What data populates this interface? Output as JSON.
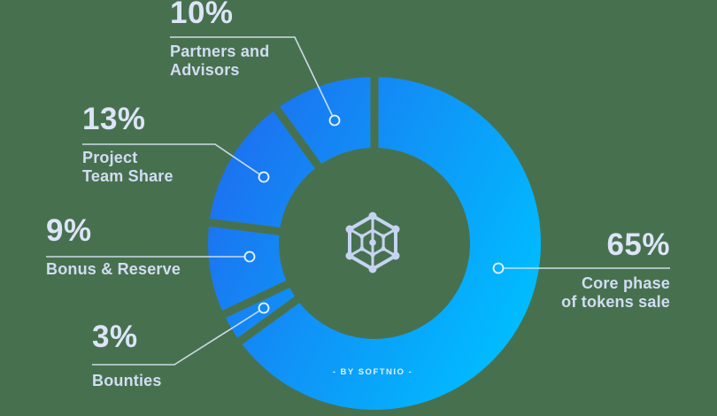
{
  "chart_data": {
    "type": "pie",
    "variant": "donut",
    "byline": "- BY SOFTNIO -",
    "unit": "%",
    "legend_position": "callout-labels",
    "slices": [
      {
        "name": "Core phase\nof tokens sale",
        "pct": "65%",
        "value": 65
      },
      {
        "name": "Bounties",
        "pct": "3%",
        "value": 3
      },
      {
        "name": "Bonus & Reserve",
        "pct": "9%",
        "value": 9
      },
      {
        "name": "Project\nTeam Share",
        "pct": "13%",
        "value": 13
      },
      {
        "name": "Partners and\nAdvisors",
        "pct": "10%",
        "value": 10
      }
    ],
    "colors": {
      "background": "#47714e",
      "ring_gradient_start": "#1e6cef",
      "ring_gradient_end": "#00bdff",
      "pct_text": "#dde4f8",
      "label_text": "#d2dcf4",
      "leader_line": "#d9e4f6",
      "marker_ring": "#eff5fe",
      "logo": "#c6d4f2",
      "byline_text": "#e5f1fd"
    }
  }
}
